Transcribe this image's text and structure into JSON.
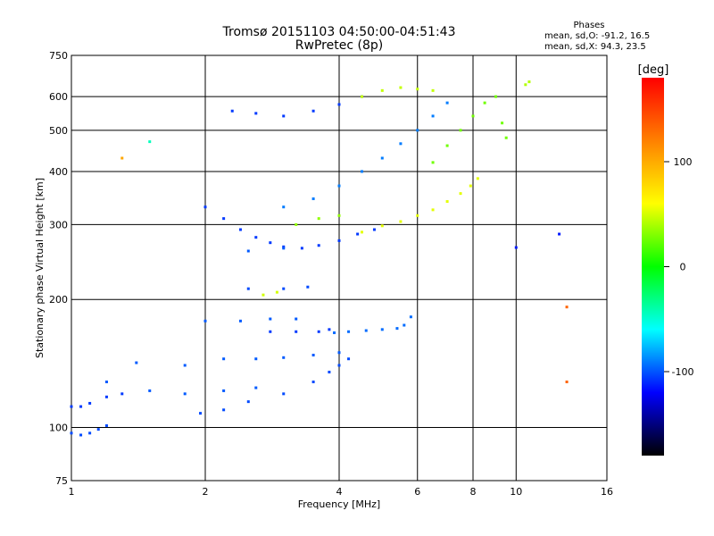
{
  "chart_data": {
    "type": "scatter",
    "title": "Tromsø 20151103 04:50:00-04:51:43",
    "subtitle": "RwPretec (8p)",
    "xlabel": "Frequency [MHz]",
    "ylabel": "Stationary phase Virtual Height [km]",
    "x_scale": "log",
    "y_scale": "log",
    "xlim": [
      1,
      16
    ],
    "ylim": [
      75,
      750
    ],
    "x_ticks": [
      1,
      2,
      4,
      6,
      8,
      10,
      16
    ],
    "y_ticks": [
      75,
      100,
      200,
      300,
      400,
      500,
      600,
      750
    ],
    "grid": true,
    "stats": {
      "heading": "Phases",
      "o_line": "mean, sd,O: -91.2, 16.5",
      "x_line": "mean, sd,X:  94.3, 23.5"
    },
    "colorbar": {
      "label": "[deg]",
      "range": [
        -180,
        180
      ],
      "ticks": [
        100,
        0,
        -100
      ],
      "colors": [
        "#ff0000",
        "#ff8000",
        "#ffff00",
        "#00ff00",
        "#00ffff",
        "#0000ff",
        "#000000"
      ]
    },
    "point_color_blue": "#1a3cff",
    "point_color_yellow": "#ffe400",
    "series": [
      {
        "name": "",
        "traces": [
          {
            "phase": -105,
            "points": [
              [
                1.0,
                97
              ],
              [
                1.05,
                96
              ],
              [
                1.1,
                97
              ],
              [
                1.15,
                99
              ],
              [
                1.2,
                101
              ]
            ]
          },
          {
            "phase": -110,
            "points": [
              [
                1.0,
                112
              ],
              [
                1.05,
                112
              ],
              [
                1.1,
                114
              ],
              [
                1.2,
                118
              ],
              [
                1.3,
                120
              ]
            ]
          },
          {
            "phase": -105,
            "points": [
              [
                1.95,
                108
              ],
              [
                2.2,
                110
              ],
              [
                2.5,
                115
              ],
              [
                3.0,
                120
              ],
              [
                3.5,
                128
              ],
              [
                3.8,
                135
              ],
              [
                4.0,
                140
              ],
              [
                4.2,
                145
              ]
            ]
          },
          {
            "phase": -100,
            "points": [
              [
                1.2,
                128
              ],
              [
                1.5,
                122
              ],
              [
                1.8,
                120
              ],
              [
                2.2,
                122
              ],
              [
                2.6,
                124
              ]
            ]
          },
          {
            "phase": -100,
            "points": [
              [
                1.4,
                142
              ],
              [
                1.8,
                140
              ],
              [
                2.2,
                145
              ],
              [
                2.6,
                145
              ],
              [
                3.0,
                146
              ],
              [
                3.5,
                148
              ],
              [
                4.0,
                150
              ]
            ]
          },
          {
            "phase": -110,
            "points": [
              [
                2.8,
                168
              ],
              [
                3.2,
                168
              ],
              [
                3.6,
                168
              ],
              [
                3.8,
                170
              ]
            ]
          },
          {
            "phase": -95,
            "points": [
              [
                3.9,
                167
              ],
              [
                4.2,
                168
              ],
              [
                4.6,
                169
              ],
              [
                5.0,
                170
              ],
              [
                5.4,
                171
              ],
              [
                5.6,
                174
              ],
              [
                5.8,
                182
              ]
            ]
          },
          {
            "phase": -100,
            "points": [
              [
                2.0,
                178
              ],
              [
                2.4,
                178
              ],
              [
                2.8,
                180
              ],
              [
                3.2,
                180
              ]
            ]
          },
          {
            "phase": -105,
            "points": [
              [
                2.5,
                212
              ],
              [
                3.0,
                212
              ],
              [
                3.4,
                214
              ]
            ]
          },
          {
            "phase": 90,
            "points": [
              [
                2.7,
                205
              ],
              [
                2.9,
                208
              ]
            ]
          },
          {
            "phase": -110,
            "points": [
              [
                2.0,
                330
              ],
              [
                2.2,
                310
              ],
              [
                2.4,
                292
              ],
              [
                2.6,
                280
              ],
              [
                2.8,
                272
              ],
              [
                3.0,
                266
              ],
              [
                3.3,
                264
              ],
              [
                3.6,
                268
              ],
              [
                4.0,
                275
              ],
              [
                4.4,
                285
              ],
              [
                4.8,
                292
              ]
            ]
          },
          {
            "phase": 95,
            "points": [
              [
                4.5,
                288
              ],
              [
                5.0,
                298
              ],
              [
                5.5,
                305
              ],
              [
                6.0,
                315
              ],
              [
                6.5,
                325
              ],
              [
                7.0,
                340
              ],
              [
                7.5,
                355
              ],
              [
                7.9,
                370
              ],
              [
                8.2,
                385
              ]
            ]
          },
          {
            "phase": -100,
            "points": [
              [
                2.5,
                260
              ],
              [
                3.0,
                264
              ]
            ]
          },
          {
            "phase": -110,
            "points": [
              [
                2.3,
                555
              ],
              [
                2.6,
                548
              ],
              [
                3.0,
                540
              ],
              [
                3.5,
                555
              ],
              [
                4.0,
                575
              ],
              [
                4.5,
                600
              ]
            ]
          },
          {
            "phase": 85,
            "points": [
              [
                4.5,
                600
              ],
              [
                5.0,
                620
              ],
              [
                5.5,
                630
              ],
              [
                6.0,
                625
              ],
              [
                6.5,
                620
              ]
            ]
          },
          {
            "phase": -90,
            "points": [
              [
                3.0,
                330
              ],
              [
                3.5,
                345
              ],
              [
                4.0,
                370
              ],
              [
                4.5,
                400
              ],
              [
                5.0,
                430
              ],
              [
                5.5,
                465
              ],
              [
                6.0,
                500
              ],
              [
                6.5,
                540
              ],
              [
                7.0,
                580
              ]
            ]
          },
          {
            "phase": 70,
            "points": [
              [
                3.2,
                300
              ],
              [
                3.6,
                310
              ],
              [
                4.0,
                315
              ]
            ]
          },
          {
            "phase": 60,
            "points": [
              [
                6.5,
                420
              ],
              [
                7.0,
                460
              ],
              [
                7.5,
                500
              ],
              [
                8.0,
                540
              ],
              [
                8.5,
                580
              ],
              [
                9.0,
                600
              ],
              [
                9.3,
                520
              ],
              [
                9.5,
                480
              ]
            ]
          },
          {
            "phase": 80,
            "points": [
              [
                10.5,
                640
              ],
              [
                10.7,
                650
              ]
            ]
          },
          {
            "phase": -30,
            "points": [
              [
                1.5,
                470
              ]
            ]
          },
          {
            "phase": 130,
            "points": [
              [
                1.3,
                430
              ]
            ]
          },
          {
            "phase": -120,
            "points": [
              [
                10.0,
                265
              ],
              [
                12.5,
                285
              ]
            ]
          },
          {
            "phase": 150,
            "points": [
              [
                13.0,
                192
              ],
              [
                13.0,
                128
              ]
            ]
          }
        ]
      }
    ]
  }
}
